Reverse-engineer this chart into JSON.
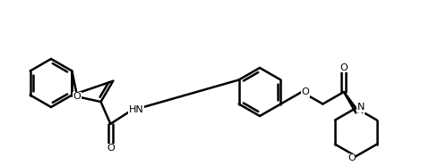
{
  "bg_color": "#ffffff",
  "line_color": "#000000",
  "lw": 1.8,
  "figsize": [
    4.99,
    1.86
  ],
  "dpi": 100,
  "atoms": {
    "O_benzo": {
      "label": "O",
      "fs": 9
    },
    "O_carbonyl1": {
      "label": "O",
      "fs": 9
    },
    "NH": {
      "label": "HN",
      "fs": 9
    },
    "O_ether": {
      "label": "O",
      "fs": 9
    },
    "O_carbonyl2": {
      "label": "O",
      "fs": 9
    },
    "N_morph": {
      "label": "N",
      "fs": 9
    },
    "O_morph": {
      "label": "O",
      "fs": 9
    }
  }
}
